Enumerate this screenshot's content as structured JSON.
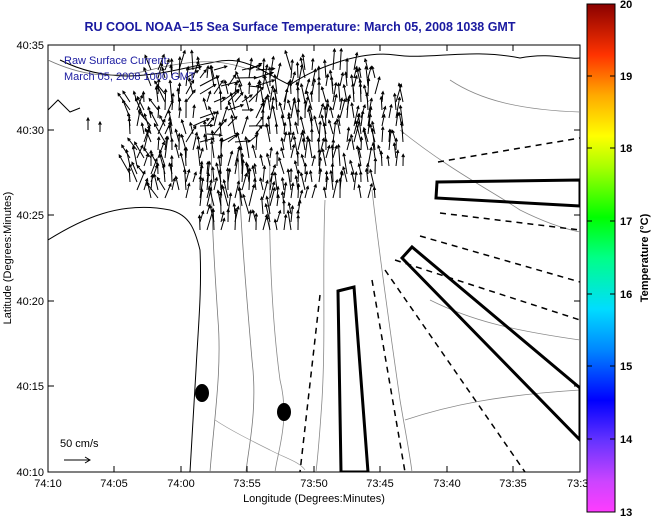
{
  "title": "RU COOL  NOAA–15  Sea Surface Temperature:  March 05, 2008 1038 GMT",
  "legend": {
    "line1": "Raw Surface Current:",
    "line2": "March 05, 2008 1000 GMT"
  },
  "scale_label": "50 cm/s",
  "x_axis": {
    "label": "Longitude (Degrees:Minutes)",
    "ticks": [
      "74:10",
      "74:05",
      "74:00",
      "73:55",
      "73:50",
      "73:45",
      "73:40",
      "73:35",
      "73:3"
    ]
  },
  "y_axis": {
    "label": "Latitude (Degrees:Minutes)",
    "ticks": [
      "40:35",
      "40:30",
      "40:25",
      "40:20",
      "40:15",
      "40:10"
    ]
  },
  "colorbar": {
    "label": "Temperature (°C)",
    "ticks": [
      "20",
      "19",
      "18",
      "17",
      "16",
      "15",
      "14",
      "13"
    ],
    "min": 13,
    "max": 20
  },
  "colors": {
    "title": "#1a1aa0",
    "legend_text": "#1a1aa0"
  }
}
